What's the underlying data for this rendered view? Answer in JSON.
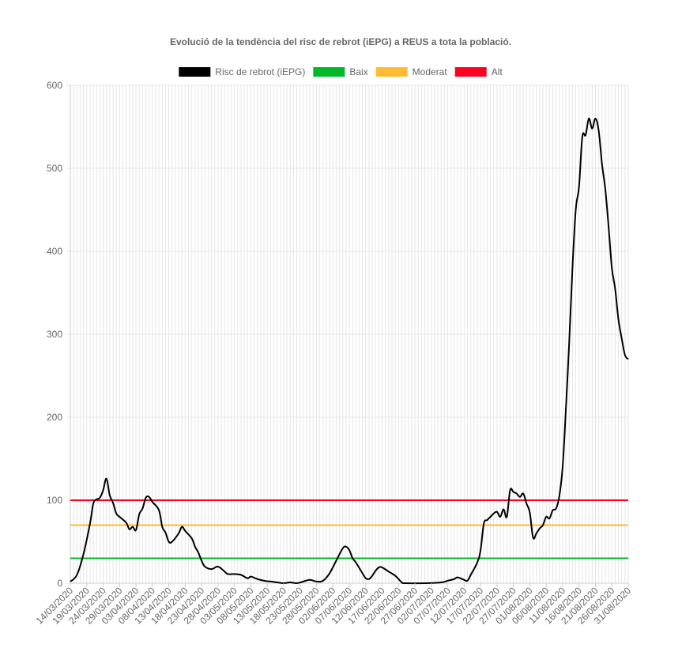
{
  "chart_data": {
    "type": "line",
    "title": "Evolució de la tendència del risc de rebrot (iEPG) a REUS a tota la població.",
    "legend_position": "top",
    "grid": true,
    "xlabel": "",
    "ylabel": "",
    "ylim": [
      0,
      600
    ],
    "yticks": [
      0,
      100,
      200,
      300,
      400,
      500,
      600
    ],
    "x_start": "14/03/2020",
    "x_end": "31/08/2020",
    "xticks": [
      "14/03/2020",
      "19/03/2020",
      "24/03/2020",
      "29/03/2020",
      "03/04/2020",
      "08/04/2020",
      "13/04/2020",
      "18/04/2020",
      "23/04/2020",
      "28/04/2020",
      "03/05/2020",
      "08/05/2020",
      "13/05/2020",
      "18/05/2020",
      "23/05/2020",
      "28/05/2020",
      "02/06/2020",
      "07/06/2020",
      "12/06/2020",
      "17/06/2020",
      "22/06/2020",
      "27/06/2020",
      "02/07/2020",
      "07/07/2020",
      "12/07/2020",
      "17/07/2020",
      "22/07/2020",
      "27/07/2020",
      "01/08/2020",
      "06/08/2020",
      "11/08/2020",
      "16/08/2020",
      "21/08/2020",
      "26/08/2020",
      "31/08/2020"
    ],
    "series": [
      {
        "name": "Risc de rebrot (iEPG)",
        "color": "#000000",
        "points": [
          [
            "14/03/2020",
            2
          ],
          [
            "16/03/2020",
            10
          ],
          [
            "18/03/2020",
            35
          ],
          [
            "20/03/2020",
            72
          ],
          [
            "21/03/2020",
            96
          ],
          [
            "22/03/2020",
            101
          ],
          [
            "23/03/2020",
            103
          ],
          [
            "24/03/2020",
            112
          ],
          [
            "25/03/2020",
            126
          ],
          [
            "26/03/2020",
            106
          ],
          [
            "27/03/2020",
            97
          ],
          [
            "28/03/2020",
            84
          ],
          [
            "29/03/2020",
            80
          ],
          [
            "31/03/2020",
            73
          ],
          [
            "01/04/2020",
            65
          ],
          [
            "02/04/2020",
            68
          ],
          [
            "03/04/2020",
            64
          ],
          [
            "04/04/2020",
            83
          ],
          [
            "05/04/2020",
            90
          ],
          [
            "06/04/2020",
            103
          ],
          [
            "07/04/2020",
            104
          ],
          [
            "08/04/2020",
            98
          ],
          [
            "10/04/2020",
            88
          ],
          [
            "11/04/2020",
            68
          ],
          [
            "12/04/2020",
            61
          ],
          [
            "13/04/2020",
            50
          ],
          [
            "14/04/2020",
            50
          ],
          [
            "16/04/2020",
            60
          ],
          [
            "17/04/2020",
            68
          ],
          [
            "18/04/2020",
            63
          ],
          [
            "20/04/2020",
            54
          ],
          [
            "21/04/2020",
            44
          ],
          [
            "22/04/2020",
            37
          ],
          [
            "23/04/2020",
            27
          ],
          [
            "24/04/2020",
            20
          ],
          [
            "26/04/2020",
            17
          ],
          [
            "28/04/2020",
            20
          ],
          [
            "30/04/2020",
            14
          ],
          [
            "01/05/2020",
            11
          ],
          [
            "03/05/2020",
            11
          ],
          [
            "05/05/2020",
            10
          ],
          [
            "07/05/2020",
            6
          ],
          [
            "08/05/2020",
            8
          ],
          [
            "10/05/2020",
            5
          ],
          [
            "12/05/2020",
            3
          ],
          [
            "14/05/2020",
            2
          ],
          [
            "16/05/2020",
            1
          ],
          [
            "18/05/2020",
            0
          ],
          [
            "20/05/2020",
            1
          ],
          [
            "22/05/2020",
            0
          ],
          [
            "24/05/2020",
            2
          ],
          [
            "26/05/2020",
            4
          ],
          [
            "28/05/2020",
            2
          ],
          [
            "30/05/2020",
            3
          ],
          [
            "01/06/2020",
            12
          ],
          [
            "03/06/2020",
            27
          ],
          [
            "05/06/2020",
            42
          ],
          [
            "06/06/2020",
            44
          ],
          [
            "07/06/2020",
            40
          ],
          [
            "08/06/2020",
            30
          ],
          [
            "09/06/2020",
            25
          ],
          [
            "11/06/2020",
            12
          ],
          [
            "12/06/2020",
            6
          ],
          [
            "13/06/2020",
            5
          ],
          [
            "14/06/2020",
            9
          ],
          [
            "15/06/2020",
            15
          ],
          [
            "16/06/2020",
            19
          ],
          [
            "17/06/2020",
            19
          ],
          [
            "19/06/2020",
            14
          ],
          [
            "21/06/2020",
            9
          ],
          [
            "22/06/2020",
            5
          ],
          [
            "23/06/2020",
            1
          ],
          [
            "24/06/2020",
            0
          ],
          [
            "30/06/2020",
            0
          ],
          [
            "05/07/2020",
            1
          ],
          [
            "07/07/2020",
            3
          ],
          [
            "09/07/2020",
            5
          ],
          [
            "10/07/2020",
            7
          ],
          [
            "12/07/2020",
            4
          ],
          [
            "13/07/2020",
            3
          ],
          [
            "14/07/2020",
            10
          ],
          [
            "16/07/2020",
            25
          ],
          [
            "17/07/2020",
            40
          ],
          [
            "18/07/2020",
            72
          ],
          [
            "19/07/2020",
            76
          ],
          [
            "20/07/2020",
            80
          ],
          [
            "21/07/2020",
            84
          ],
          [
            "22/07/2020",
            86
          ],
          [
            "23/07/2020",
            80
          ],
          [
            "24/07/2020",
            89
          ],
          [
            "25/07/2020",
            80
          ],
          [
            "26/07/2020",
            112
          ],
          [
            "27/07/2020",
            110
          ],
          [
            "28/07/2020",
            108
          ],
          [
            "29/07/2020",
            104
          ],
          [
            "30/07/2020",
            108
          ],
          [
            "31/07/2020",
            96
          ],
          [
            "01/08/2020",
            85
          ],
          [
            "02/08/2020",
            55
          ],
          [
            "03/08/2020",
            60
          ],
          [
            "04/08/2020",
            66
          ],
          [
            "05/08/2020",
            70
          ],
          [
            "06/08/2020",
            80
          ],
          [
            "07/08/2020",
            78
          ],
          [
            "08/08/2020",
            88
          ],
          [
            "09/08/2020",
            90
          ],
          [
            "10/08/2020",
            105
          ],
          [
            "11/08/2020",
            140
          ],
          [
            "12/08/2020",
            210
          ],
          [
            "13/08/2020",
            290
          ],
          [
            "14/08/2020",
            380
          ],
          [
            "15/08/2020",
            450
          ],
          [
            "16/08/2020",
            478
          ],
          [
            "17/08/2020",
            538
          ],
          [
            "18/08/2020",
            540
          ],
          [
            "19/08/2020",
            560
          ],
          [
            "20/08/2020",
            548
          ],
          [
            "21/08/2020",
            560
          ],
          [
            "22/08/2020",
            545
          ],
          [
            "23/08/2020",
            505
          ],
          [
            "24/08/2020",
            475
          ],
          [
            "25/08/2020",
            430
          ],
          [
            "26/08/2020",
            380
          ],
          [
            "27/08/2020",
            355
          ],
          [
            "28/08/2020",
            318
          ],
          [
            "29/08/2020",
            295
          ],
          [
            "30/08/2020",
            275
          ],
          [
            "31/08/2020",
            270
          ]
        ]
      },
      {
        "name": "Baix",
        "color": "#00B82A",
        "constant": 30
      },
      {
        "name": "Moderat",
        "color": "#FFBB33",
        "constant": 70
      },
      {
        "name": "Alt",
        "color": "#FF0022",
        "constant": 100
      }
    ]
  }
}
